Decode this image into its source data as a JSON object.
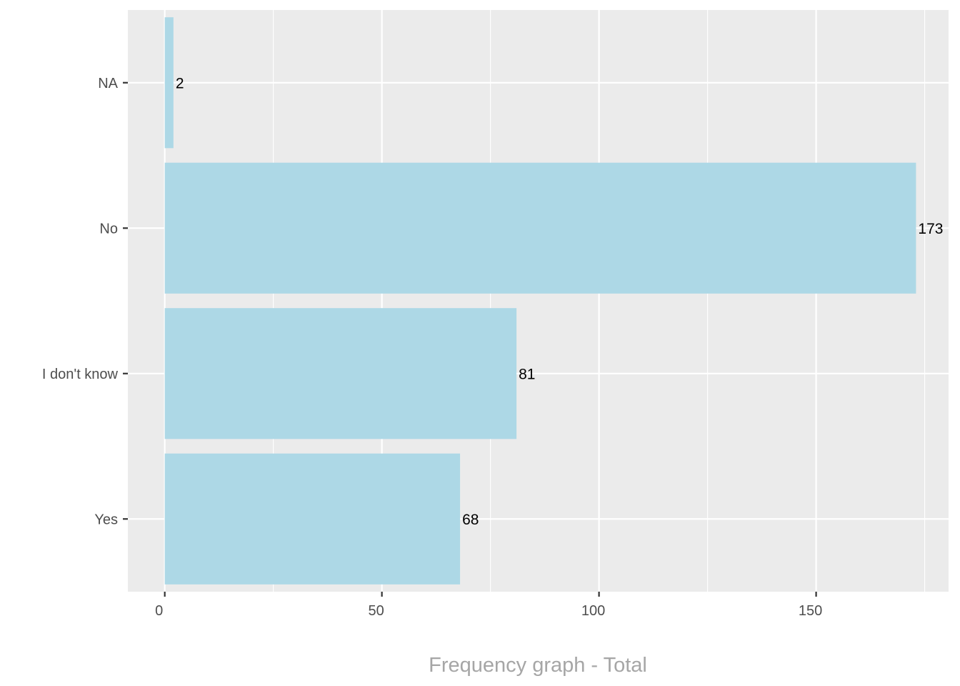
{
  "chart_data": {
    "type": "bar",
    "orientation": "horizontal",
    "categories": [
      "Yes",
      "I don't know",
      "No",
      "NA"
    ],
    "values": [
      68,
      81,
      173,
      2
    ],
    "data_labels": [
      "68",
      "81",
      "173",
      "2"
    ],
    "xlabel": "Frequency graph - Total",
    "ylabel": "",
    "xlim": [
      -8.5,
      180.5
    ],
    "x_ticks": [
      0,
      50,
      100,
      150
    ],
    "x_tick_labels": [
      "0",
      "50",
      "100",
      "150"
    ],
    "grid": true,
    "legend": "none",
    "colors": {
      "bar": "#add8e6",
      "panel_background": "#ebebeb",
      "grid_major": "#ffffff",
      "tick_text": "#4d4d4d",
      "axis_title": "#a6a6a6",
      "data_label": "#000000"
    }
  }
}
